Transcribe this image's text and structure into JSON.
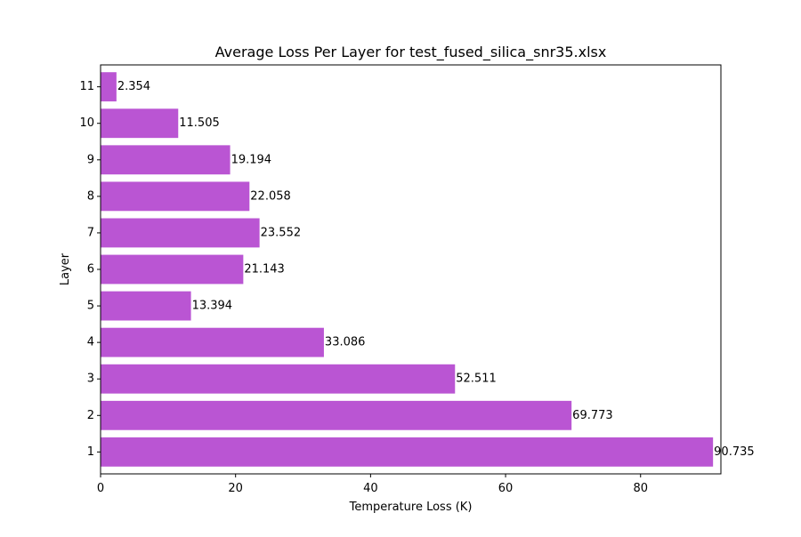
{
  "chart_data": {
    "type": "bar",
    "orientation": "horizontal",
    "title": "Average Loss Per Layer for test_fused_silica_snr35.xlsx",
    "xlabel": "Temperature Loss (K)",
    "ylabel": "Layer",
    "categories": [
      "1",
      "2",
      "3",
      "4",
      "5",
      "6",
      "7",
      "8",
      "9",
      "10",
      "11"
    ],
    "values": [
      90.735,
      69.773,
      52.511,
      33.086,
      13.394,
      21.143,
      23.552,
      22.058,
      19.194,
      11.505,
      2.354
    ],
    "data_labels": [
      "90.735",
      "69.773",
      "52.511",
      "33.086",
      "13.394",
      "21.143",
      "23.552",
      "22.058",
      "19.194",
      "11.505",
      "2.354"
    ],
    "xlim": [
      0,
      91.9
    ],
    "xticks": [
      0,
      20,
      40,
      60,
      80
    ],
    "xtick_labels": [
      "0",
      "20",
      "40",
      "60",
      "80"
    ],
    "bar_color": "#ba55d3",
    "grid": false,
    "legend": "none"
  }
}
